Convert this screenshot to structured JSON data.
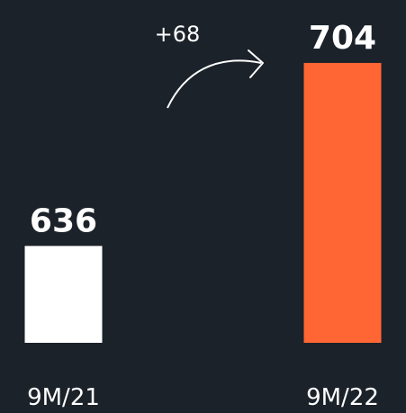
{
  "chart_data": {
    "type": "bar",
    "categories": [
      "9M/21",
      "9M/22"
    ],
    "values": [
      636,
      704
    ],
    "colors": [
      "#ffffff",
      "#ff6633"
    ],
    "ylim": [
      600,
      710
    ],
    "annotation": "+68"
  }
}
